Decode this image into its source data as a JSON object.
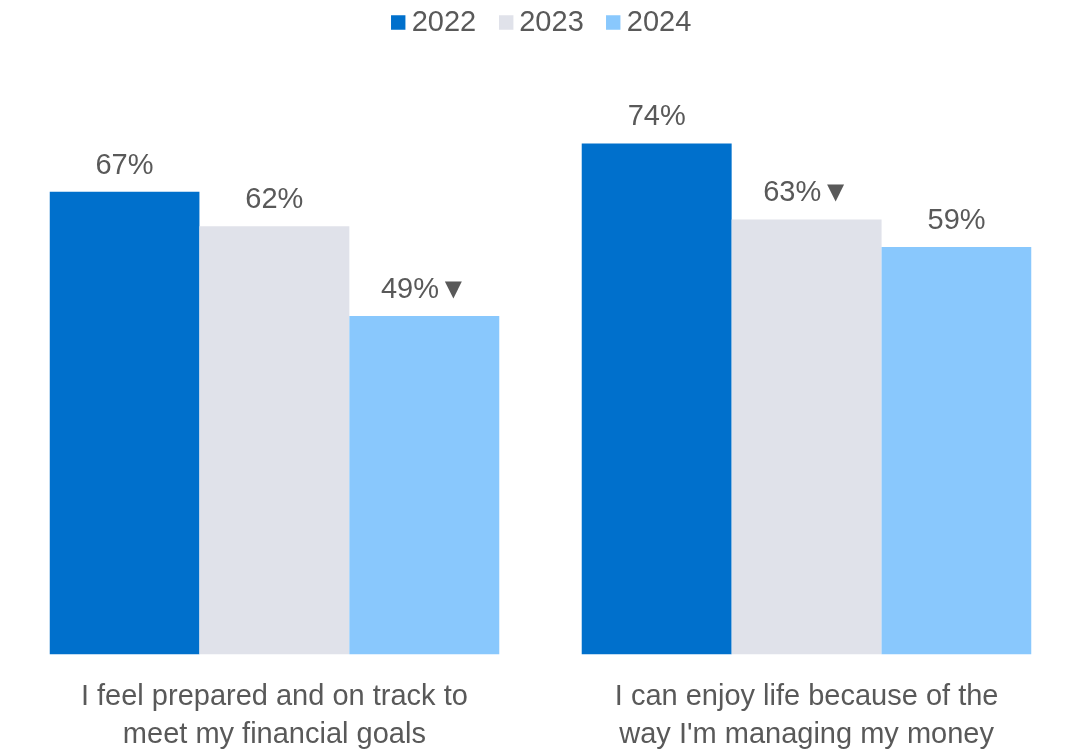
{
  "chart_data": {
    "type": "bar",
    "categories": [
      "I feel prepared and on track to meet my financial goals",
      "I can enjoy life because of the way I'm managing my money"
    ],
    "series": [
      {
        "name": "2022",
        "color": "#0070cc",
        "values": [
          67,
          74
        ],
        "value_labels": [
          "67%",
          "74%"
        ]
      },
      {
        "name": "2023",
        "color": "#e0e2ea",
        "values": [
          62,
          63
        ],
        "value_labels": [
          "62%",
          "63%▼"
        ]
      },
      {
        "name": "2024",
        "color": "#89c8fd",
        "values": [
          49,
          59
        ],
        "value_labels": [
          "49%▼",
          "59%"
        ]
      }
    ],
    "legend": "top",
    "grid": false
  }
}
